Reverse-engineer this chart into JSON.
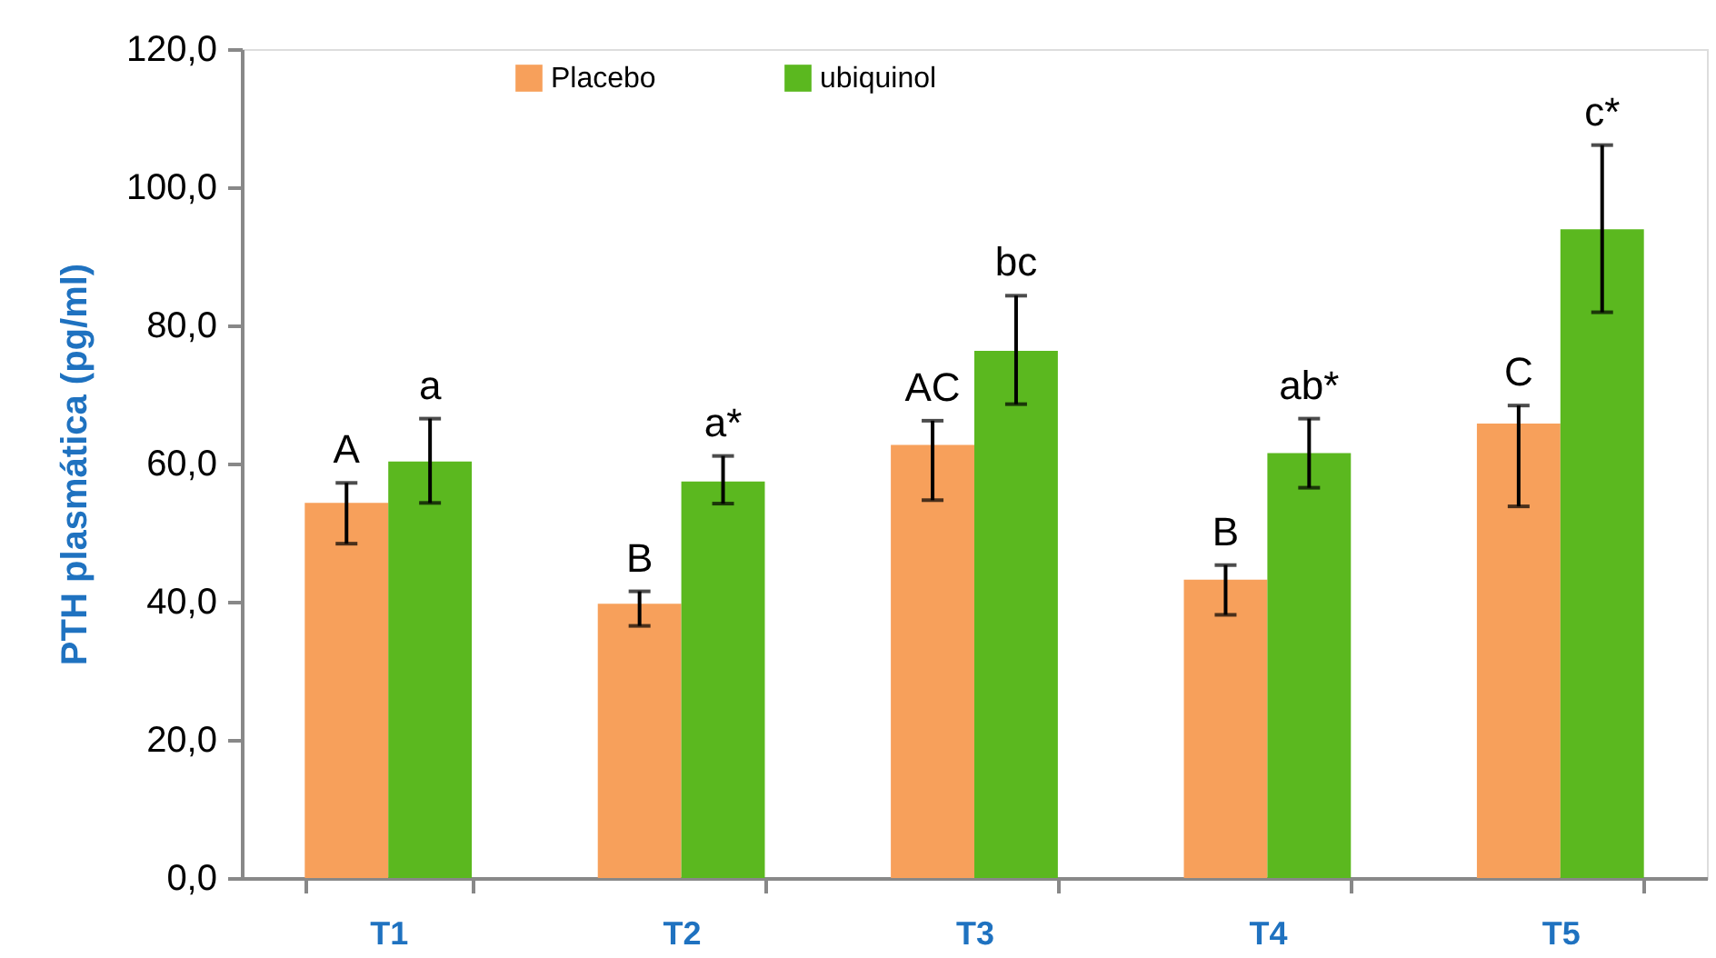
{
  "chart_data": {
    "type": "bar",
    "ylabel": "PTH plasmática (pg/ml)",
    "categories": [
      "T1",
      "T2",
      "T3",
      "T4",
      "T5"
    ],
    "series": [
      {
        "name": "Placebo",
        "color": "#f7a05b",
        "values": [
          54.3,
          39.7,
          62.7,
          43.2,
          65.8
        ],
        "errors": [
          [
            48.4,
            57.2
          ],
          [
            36.5,
            41.5
          ],
          [
            54.7,
            66.2
          ],
          [
            38.1,
            45.3
          ],
          [
            53.8,
            68.4
          ]
        ],
        "value_labels": [
          "A",
          "B",
          "AC",
          "B",
          "C"
        ]
      },
      {
        "name": "ubiquinol",
        "color": "#5bb81f",
        "values": [
          60.3,
          57.4,
          76.3,
          61.5,
          93.9
        ],
        "errors": [
          [
            54.3,
            66.5
          ],
          [
            54.2,
            61.1
          ],
          [
            68.6,
            84.3
          ],
          [
            56.5,
            66.5
          ],
          [
            81.9,
            106.1
          ]
        ],
        "value_labels": [
          "a",
          "a*",
          "bc",
          "ab*",
          "c*"
        ]
      }
    ],
    "ylim": [
      0,
      120
    ],
    "yticks": [
      {
        "value": 0,
        "label": "0,0"
      },
      {
        "value": 20,
        "label": "20,0"
      },
      {
        "value": 40,
        "label": "40,0"
      },
      {
        "value": 60,
        "label": "60,0"
      },
      {
        "value": 80,
        "label": "80,0"
      },
      {
        "value": 100,
        "label": "100,0"
      },
      {
        "value": 120,
        "label": "120,0"
      }
    ],
    "grid": false,
    "legend": "top left"
  }
}
